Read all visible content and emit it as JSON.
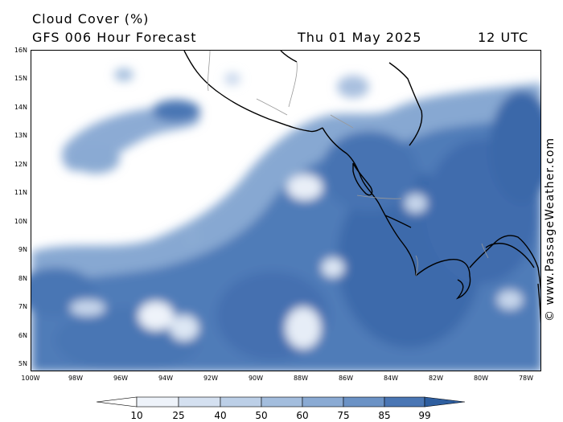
{
  "header": {
    "title": "Cloud Cover (%)",
    "subtitle": "GFS 006 Hour Forecast",
    "date": "Thu 01 May 2025",
    "time": "12 UTC"
  },
  "watermark": "© www.PassageWeather.com",
  "axes": {
    "lat_labels": [
      "16N",
      "15N",
      "14N",
      "13N",
      "12N",
      "11N",
      "10N",
      "9N",
      "8N",
      "7N",
      "6N",
      "5N"
    ],
    "lon_labels": [
      "100W",
      "98W",
      "96W",
      "94W",
      "92W",
      "90W",
      "88W",
      "86W",
      "84W",
      "82W",
      "80W",
      "78W"
    ]
  },
  "legend": {
    "ticks": [
      "10",
      "25",
      "40",
      "50",
      "60",
      "75",
      "85",
      "99"
    ],
    "colors": [
      "#ffffff",
      "#eef3fa",
      "#d4e0f0",
      "#bccfe7",
      "#a3bddd",
      "#8aaad3",
      "#6b92c5",
      "#4a76b4",
      "#2e5e9f"
    ]
  },
  "map": {
    "background_color": "#ffffff",
    "coastline_color": "#000000",
    "border_color": "#999999"
  }
}
